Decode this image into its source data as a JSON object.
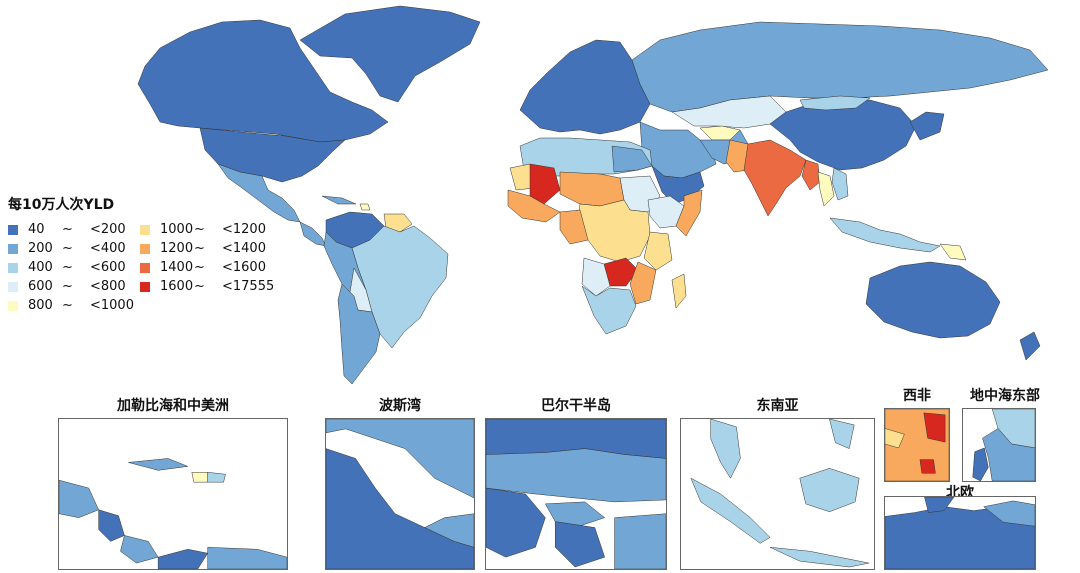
{
  "legend": {
    "title": "每10万人次YLD",
    "items": [
      {
        "low": "40",
        "sep": "~",
        "high": "<200",
        "color": "#4472b8"
      },
      {
        "low": "200",
        "sep": "~",
        "high": "<400",
        "color": "#72a6d4"
      },
      {
        "low": "400",
        "sep": "~",
        "high": "<600",
        "color": "#a9d3e8"
      },
      {
        "low": "600",
        "sep": "~",
        "high": "<800",
        "color": "#ddeef6"
      },
      {
        "low": "800",
        "sep": "~",
        "high": "<1000",
        "color": "#fffbbf"
      },
      {
        "low": "1000",
        "sep": "~",
        "high": "<1200",
        "color": "#fde08f"
      },
      {
        "low": "1200",
        "sep": "~",
        "high": "<1400",
        "color": "#f8a95e"
      },
      {
        "low": "1400",
        "sep": "~",
        "high": "<1600",
        "color": "#ec6a42"
      },
      {
        "low": "1600",
        "sep": "~",
        "high": "<17555",
        "color": "#d7281f"
      }
    ]
  },
  "insets": [
    {
      "id": "caribbean",
      "title": "加勒比海和中美洲"
    },
    {
      "id": "persian-gulf",
      "title": "波斯湾"
    },
    {
      "id": "balkans",
      "title": "巴尔干半岛"
    },
    {
      "id": "southeast-asia",
      "title": "东南亚"
    },
    {
      "id": "west-africa",
      "title": "西非"
    },
    {
      "id": "east-mediterranean",
      "title": "地中海东部"
    },
    {
      "id": "northern-europe",
      "title": "北欧"
    }
  ]
}
